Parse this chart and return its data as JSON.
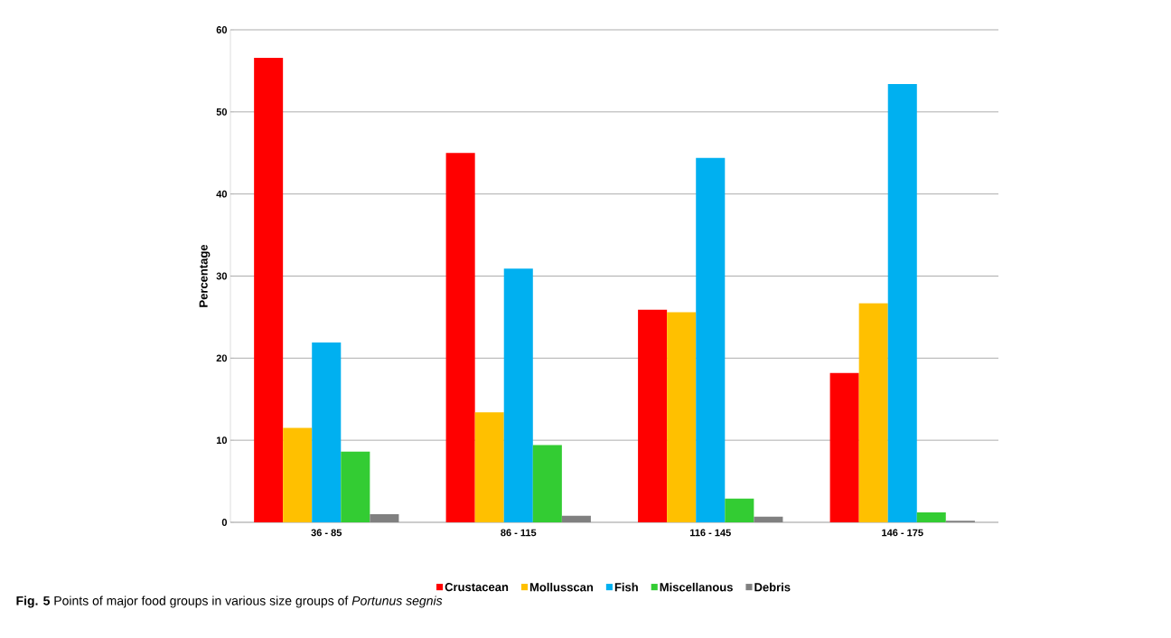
{
  "chart_data": {
    "type": "bar",
    "ylabel": "Percentage",
    "categories": [
      "36 - 85",
      "86 - 115",
      "116 - 145",
      "146 - 175"
    ],
    "series": [
      {
        "name": "Crustacean",
        "color": "#ff0000",
        "values": [
          56.6,
          45.0,
          25.9,
          18.2
        ]
      },
      {
        "name": "Mollusscan",
        "color": "#ffc000",
        "values": [
          11.5,
          13.4,
          25.6,
          26.7
        ]
      },
      {
        "name": "Fish",
        "color": "#00b0f0",
        "values": [
          21.9,
          30.9,
          44.4,
          53.4
        ]
      },
      {
        "name": "Miscellanous",
        "color": "#33cc33",
        "values": [
          8.6,
          9.4,
          2.9,
          1.2
        ]
      },
      {
        "name": "Debris",
        "color": "#808080",
        "values": [
          1.0,
          0.8,
          0.7,
          0.2
        ]
      }
    ],
    "ylim": [
      0,
      60
    ],
    "yticks": [
      0,
      10,
      20,
      30,
      40,
      50,
      60
    ],
    "grid": "y",
    "legend": "bottom",
    "annotations": [
      "**Fig. 5** Points of major food groups in various size groups of *Portunus segnis*"
    ]
  }
}
